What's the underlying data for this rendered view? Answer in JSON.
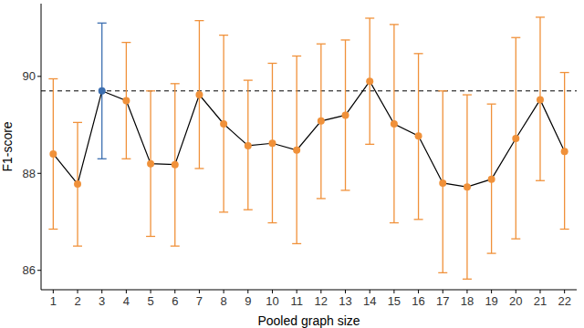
{
  "chart_data": {
    "type": "line",
    "x_label": "Pooled graph size",
    "y_label": "F1-score",
    "x": [
      1,
      2,
      3,
      4,
      5,
      6,
      7,
      8,
      9,
      10,
      11,
      12,
      13,
      14,
      15,
      16,
      17,
      18,
      19,
      20,
      21,
      22
    ],
    "xlim": [
      0.5,
      22.5
    ],
    "xticks": [
      1,
      2,
      3,
      4,
      5,
      6,
      7,
      8,
      9,
      10,
      11,
      12,
      13,
      14,
      15,
      16,
      17,
      18,
      19,
      20,
      21,
      22
    ],
    "ylim": [
      85.6,
      91.5
    ],
    "yticks": [
      86,
      88,
      90
    ],
    "grid": false,
    "reference_line": 89.7,
    "series": [
      {
        "color": "#000000",
        "marker": "circle",
        "line_style": "solid",
        "colors": [
          "#f0913a",
          "#f0913a",
          "#3d6fb0",
          "#f0913a",
          "#f0913a",
          "#f0913a",
          "#f0913a",
          "#f0913a",
          "#f0913a",
          "#f0913a",
          "#f0913a",
          "#f0913a",
          "#f0913a",
          "#f0913a",
          "#f0913a",
          "#f0913a",
          "#f0913a",
          "#f0913a",
          "#f0913a",
          "#f0913a",
          "#f0913a",
          "#f0913a"
        ],
        "values": [
          88.4,
          87.78,
          89.7,
          89.5,
          88.2,
          88.18,
          89.62,
          89.02,
          88.57,
          88.62,
          88.48,
          89.08,
          89.2,
          89.9,
          89.02,
          88.77,
          87.8,
          87.72,
          87.88,
          88.72,
          89.52,
          88.45
        ],
        "lower": [
          86.85,
          86.5,
          88.3,
          88.3,
          86.7,
          86.5,
          88.1,
          87.2,
          87.25,
          86.98,
          86.55,
          87.48,
          87.65,
          88.6,
          86.98,
          87.05,
          85.95,
          85.82,
          86.35,
          86.65,
          87.85,
          86.85
        ],
        "upper": [
          89.95,
          89.05,
          91.1,
          90.7,
          89.7,
          89.85,
          91.15,
          90.85,
          89.92,
          90.27,
          90.42,
          90.67,
          90.75,
          91.2,
          91.07,
          90.47,
          89.7,
          89.62,
          89.43,
          90.8,
          91.22,
          90.08
        ]
      }
    ]
  }
}
